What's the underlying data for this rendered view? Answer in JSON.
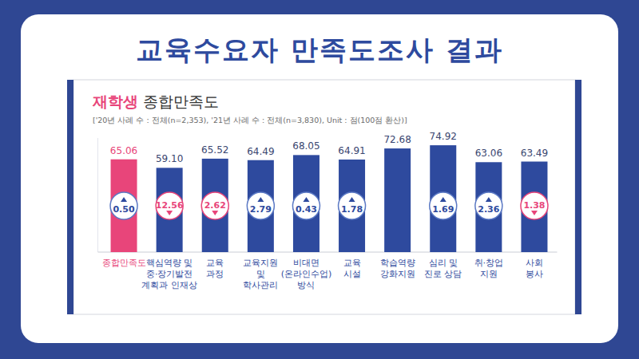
{
  "page_title": "교육수요자 만족도조사 결과",
  "chart_data": {
    "type": "bar",
    "title": "재학생 종합만족도",
    "subtitle": "['20년 사례 수 : 전체(n=2,353), '21년 사례 수 : 전체(n=3,830), Unit : 점(100점 환산)]",
    "categories": [
      "종합만족도",
      "핵심역량 및\n중·장기발전\n계획과 인재상",
      "교육\n과정",
      "교육지원\n및\n학사관리",
      "비대면\n(온라인수업)\n방식",
      "교육\n시설",
      "학습역량\n강화지원",
      "심리 및\n진로 상담",
      "취·창업\n지원",
      "사회\n봉사"
    ],
    "values": [
      65.06,
      59.1,
      65.52,
      64.49,
      68.05,
      64.91,
      72.68,
      74.92,
      63.06,
      63.49
    ],
    "value_labels": [
      "65.06",
      "59.10",
      "65.52",
      "64.49",
      "68.05",
      "64.91",
      "72.68",
      "74.92",
      "63.06",
      "63.49"
    ],
    "changes": [
      0.5,
      -12.56,
      -2.62,
      2.79,
      0.43,
      1.78,
      null,
      1.69,
      2.36,
      -1.38
    ],
    "change_labels": [
      "0.50",
      "12.56",
      "2.62",
      "2.79",
      "0.43",
      "1.78",
      null,
      "1.69",
      "2.36",
      "1.38"
    ],
    "colors": [
      "#e8457a",
      "#2e4a9e",
      "#2e4a9e",
      "#2e4a9e",
      "#2e4a9e",
      "#2e4a9e",
      "#2e4a9e",
      "#2e4a9e",
      "#2e4a9e",
      "#2e4a9e"
    ],
    "ylim": [
      0,
      80
    ],
    "yticks": [],
    "grid": false,
    "data_labels": true,
    "tick_labels": "x"
  }
}
